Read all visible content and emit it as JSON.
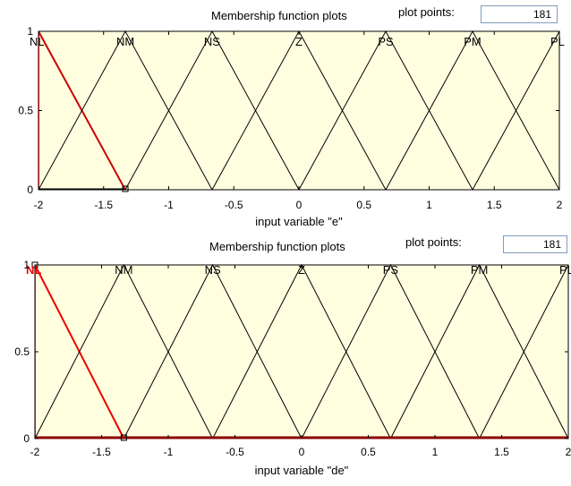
{
  "plots": [
    {
      "header_title": "Membership function plots",
      "plot_points_label": "plot points:",
      "plot_points_value": "181",
      "xlabel": "input variable \"e\"",
      "selected_mf": "NL",
      "highlight_color": "#cc0000",
      "bg_color": "#ffffe0",
      "chart_data": {
        "type": "line",
        "xlim": [
          -2,
          2
        ],
        "ylim": [
          0,
          1
        ],
        "x_ticks": [
          "-2",
          "-1.5",
          "-1",
          "-0.5",
          "0",
          "0.5",
          "1",
          "1.5",
          "2"
        ],
        "y_ticks": [
          "0",
          "0.5",
          "1"
        ],
        "grid": false,
        "series": [
          {
            "name": "NL",
            "x": [
              -2,
              -2,
              -1.333
            ],
            "y": [
              0,
              1,
              0
            ]
          },
          {
            "name": "NM",
            "x": [
              -2,
              -1.333,
              -0.667
            ],
            "y": [
              0,
              1,
              0
            ]
          },
          {
            "name": "NS",
            "x": [
              -1.333,
              -0.667,
              0
            ],
            "y": [
              0,
              1,
              0
            ]
          },
          {
            "name": "Z",
            "x": [
              -0.667,
              0,
              0.667
            ],
            "y": [
              0,
              1,
              0
            ]
          },
          {
            "name": "PS",
            "x": [
              0,
              0.667,
              1.333
            ],
            "y": [
              0,
              1,
              0
            ]
          },
          {
            "name": "PM",
            "x": [
              0.667,
              1.333,
              2
            ],
            "y": [
              0,
              1,
              0
            ]
          },
          {
            "name": "PL",
            "x": [
              1.333,
              2,
              2
            ],
            "y": [
              0,
              1,
              0
            ]
          }
        ]
      }
    },
    {
      "header_title": "Membership function plots",
      "plot_points_label": "plot points:",
      "plot_points_value": "181",
      "xlabel": "input variable \"de\"",
      "selected_mf": "NL",
      "highlight_color": "#ee0000",
      "bg_color": "#ffffe0",
      "chart_data": {
        "type": "line",
        "xlim": [
          -2,
          2
        ],
        "ylim": [
          0,
          1
        ],
        "x_ticks": [
          "-2",
          "-1.5",
          "-1",
          "-0.5",
          "0",
          "0.5",
          "1",
          "1.5",
          "2"
        ],
        "y_ticks": [
          "0",
          "0.5",
          "1"
        ],
        "grid": false,
        "series": [
          {
            "name": "NL",
            "x": [
              -2,
              -2,
              -1.333
            ],
            "y": [
              0,
              1,
              0
            ]
          },
          {
            "name": "NM",
            "x": [
              -2,
              -1.333,
              -0.667
            ],
            "y": [
              0,
              1,
              0
            ]
          },
          {
            "name": "NS",
            "x": [
              -1.333,
              -0.667,
              0
            ],
            "y": [
              0,
              1,
              0
            ]
          },
          {
            "name": "Z",
            "x": [
              -0.667,
              0,
              0.667
            ],
            "y": [
              0,
              1,
              0
            ]
          },
          {
            "name": "PS",
            "x": [
              0,
              0.667,
              1.333
            ],
            "y": [
              0,
              1,
              0
            ]
          },
          {
            "name": "PM",
            "x": [
              0.667,
              1.333,
              2
            ],
            "y": [
              0,
              1,
              0
            ]
          },
          {
            "name": "PL",
            "x": [
              1.333,
              2,
              2
            ],
            "y": [
              0,
              1,
              0
            ]
          }
        ]
      }
    }
  ]
}
